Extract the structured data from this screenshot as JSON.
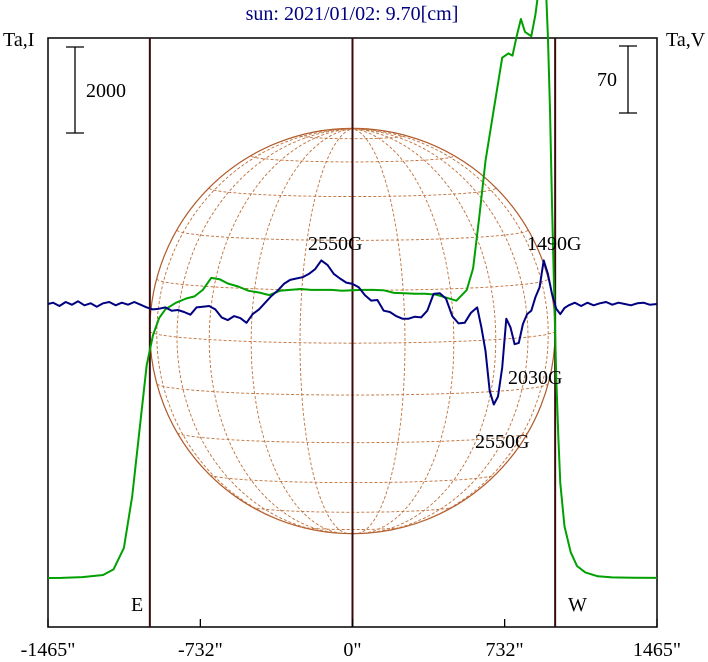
{
  "chart_data": {
    "type": "line",
    "title": "sun: 2021/01/02: 9.70[cm]",
    "left_axis_label": "Ta,I",
    "right_axis_label": "Ta,V",
    "left_scale_bar": "2000",
    "right_scale_bar": "70",
    "x_unit": "arcsec",
    "xlim": [
      -1465,
      1465
    ],
    "x_tick_values": [
      -1465,
      -732,
      0,
      732,
      1465
    ],
    "x_tick_labels": [
      "-1465\"",
      "-732\"",
      "0\"",
      "732\"",
      "1465\""
    ],
    "vertical_lines_x": [
      -975,
      0,
      975
    ],
    "limb_labels": {
      "east": "E",
      "west": "W"
    },
    "disk_radius": 975,
    "grid": false,
    "annotations": [
      {
        "text": "2550G",
        "x": -5,
        "anchor": "I-peak-center"
      },
      {
        "text": "1490G",
        "x": 860,
        "anchor": "V-positive-west"
      },
      {
        "text": "2030G",
        "x": 760,
        "anchor": "V-negative-west"
      },
      {
        "text": "2550G",
        "x": 635,
        "anchor": "V-negative-min"
      }
    ],
    "series": [
      {
        "key": "intensity",
        "color": "#00a000",
        "axis": "left",
        "x": [
          -1465,
          -1400,
          -1300,
          -1200,
          -1150,
          -1100,
          -1060,
          -1020,
          -990,
          -960,
          -930,
          -900,
          -850,
          -800,
          -760,
          -720,
          -680,
          -640,
          -600,
          -550,
          -500,
          -450,
          -400,
          -350,
          -300,
          -250,
          -200,
          -150,
          -100,
          -50,
          0,
          50,
          100,
          150,
          200,
          250,
          300,
          350,
          400,
          450,
          500,
          550,
          580,
          610,
          640,
          680,
          720,
          750,
          770,
          790,
          810,
          830,
          860,
          880,
          900,
          910,
          920,
          930,
          940,
          950,
          960,
          970,
          980,
          990,
          1000,
          1020,
          1050,
          1080,
          1120,
          1180,
          1250,
          1350,
          1465
        ],
        "y": [
          0,
          2,
          20,
          70,
          200,
          700,
          1900,
          3650,
          4950,
          5650,
          6050,
          6250,
          6400,
          6500,
          6550,
          6700,
          6980,
          6950,
          6850,
          6780,
          6680,
          6640,
          6580,
          6680,
          6700,
          6720,
          6700,
          6700,
          6700,
          6680,
          6690,
          6700,
          6700,
          6690,
          6630,
          6620,
          6610,
          6610,
          6590,
          6520,
          6450,
          6700,
          7200,
          8400,
          9700,
          10900,
          12100,
          12200,
          12150,
          12600,
          13000,
          12700,
          12600,
          13100,
          13850,
          14200,
          14300,
          13800,
          12600,
          10900,
          8700,
          6700,
          4700,
          3300,
          2200,
          1200,
          600,
          280,
          130,
          40,
          15,
          5,
          2
        ]
      },
      {
        "key": "polarization_V",
        "color": "#000080",
        "axis": "right",
        "x": [
          -1465,
          -1440,
          -1410,
          -1380,
          -1350,
          -1320,
          -1290,
          -1260,
          -1230,
          -1200,
          -1170,
          -1140,
          -1110,
          -1080,
          -1050,
          -1020,
          -990,
          -960,
          -930,
          -900,
          -870,
          -840,
          -810,
          -780,
          -750,
          -720,
          -690,
          -660,
          -630,
          -600,
          -570,
          -540,
          -510,
          -480,
          -450,
          -420,
          -390,
          -360,
          -330,
          -300,
          -270,
          -240,
          -210,
          -180,
          -150,
          -120,
          -90,
          -60,
          -30,
          0,
          30,
          60,
          90,
          120,
          150,
          180,
          210,
          240,
          270,
          300,
          330,
          360,
          390,
          420,
          450,
          480,
          510,
          540,
          570,
          600,
          620,
          640,
          660,
          680,
          700,
          720,
          740,
          760,
          780,
          800,
          820,
          840,
          860,
          880,
          900,
          920,
          940,
          960,
          980,
          1000,
          1020,
          1040,
          1070,
          1100,
          1130,
          1160,
          1190,
          1220,
          1250,
          1280,
          1310,
          1340,
          1370,
          1400,
          1430,
          1465
        ],
        "y": [
          0,
          0.2,
          -0.3,
          0.3,
          -0.1,
          0.4,
          -0.2,
          0.1,
          -0.4,
          0.1,
          0.3,
          -0.2,
          0.2,
          -0.1,
          0.3,
          -0.1,
          -0.5,
          -0.8,
          -0.7,
          -0.5,
          -1.0,
          -0.9,
          -1.2,
          -1.6,
          -0.5,
          -0.4,
          -0.3,
          -0.8,
          -2.0,
          -2.4,
          -1.8,
          -2.1,
          -2.8,
          -1.5,
          -0.8,
          0.2,
          1.2,
          2.0,
          3.0,
          3.6,
          3.8,
          4.0,
          4.5,
          5.2,
          6.5,
          5.8,
          4.5,
          3.8,
          3.2,
          3.0,
          2.5,
          1.3,
          0.5,
          0.6,
          -1.0,
          -1.2,
          -1.8,
          -2.2,
          -2.2,
          -1.9,
          -2.0,
          -1.0,
          1.5,
          1.6,
          0.8,
          -1.8,
          -2.9,
          -2.8,
          -1.3,
          -0.5,
          -3.5,
          -7.0,
          -13.0,
          -15.0,
          -13.8,
          -9.5,
          -2.2,
          -3.5,
          -6.0,
          -5.8,
          -3.0,
          -1.5,
          -1.0,
          1.0,
          2.5,
          6.5,
          4.5,
          1.5,
          -0.7,
          -1.5,
          -0.6,
          -0.2,
          0.2,
          -0.3,
          0.2,
          -0.2,
          0.1,
          0.3,
          -0.1,
          0.2,
          0,
          -0.2,
          0.1,
          0.2,
          -0.1,
          0
        ]
      }
    ]
  }
}
